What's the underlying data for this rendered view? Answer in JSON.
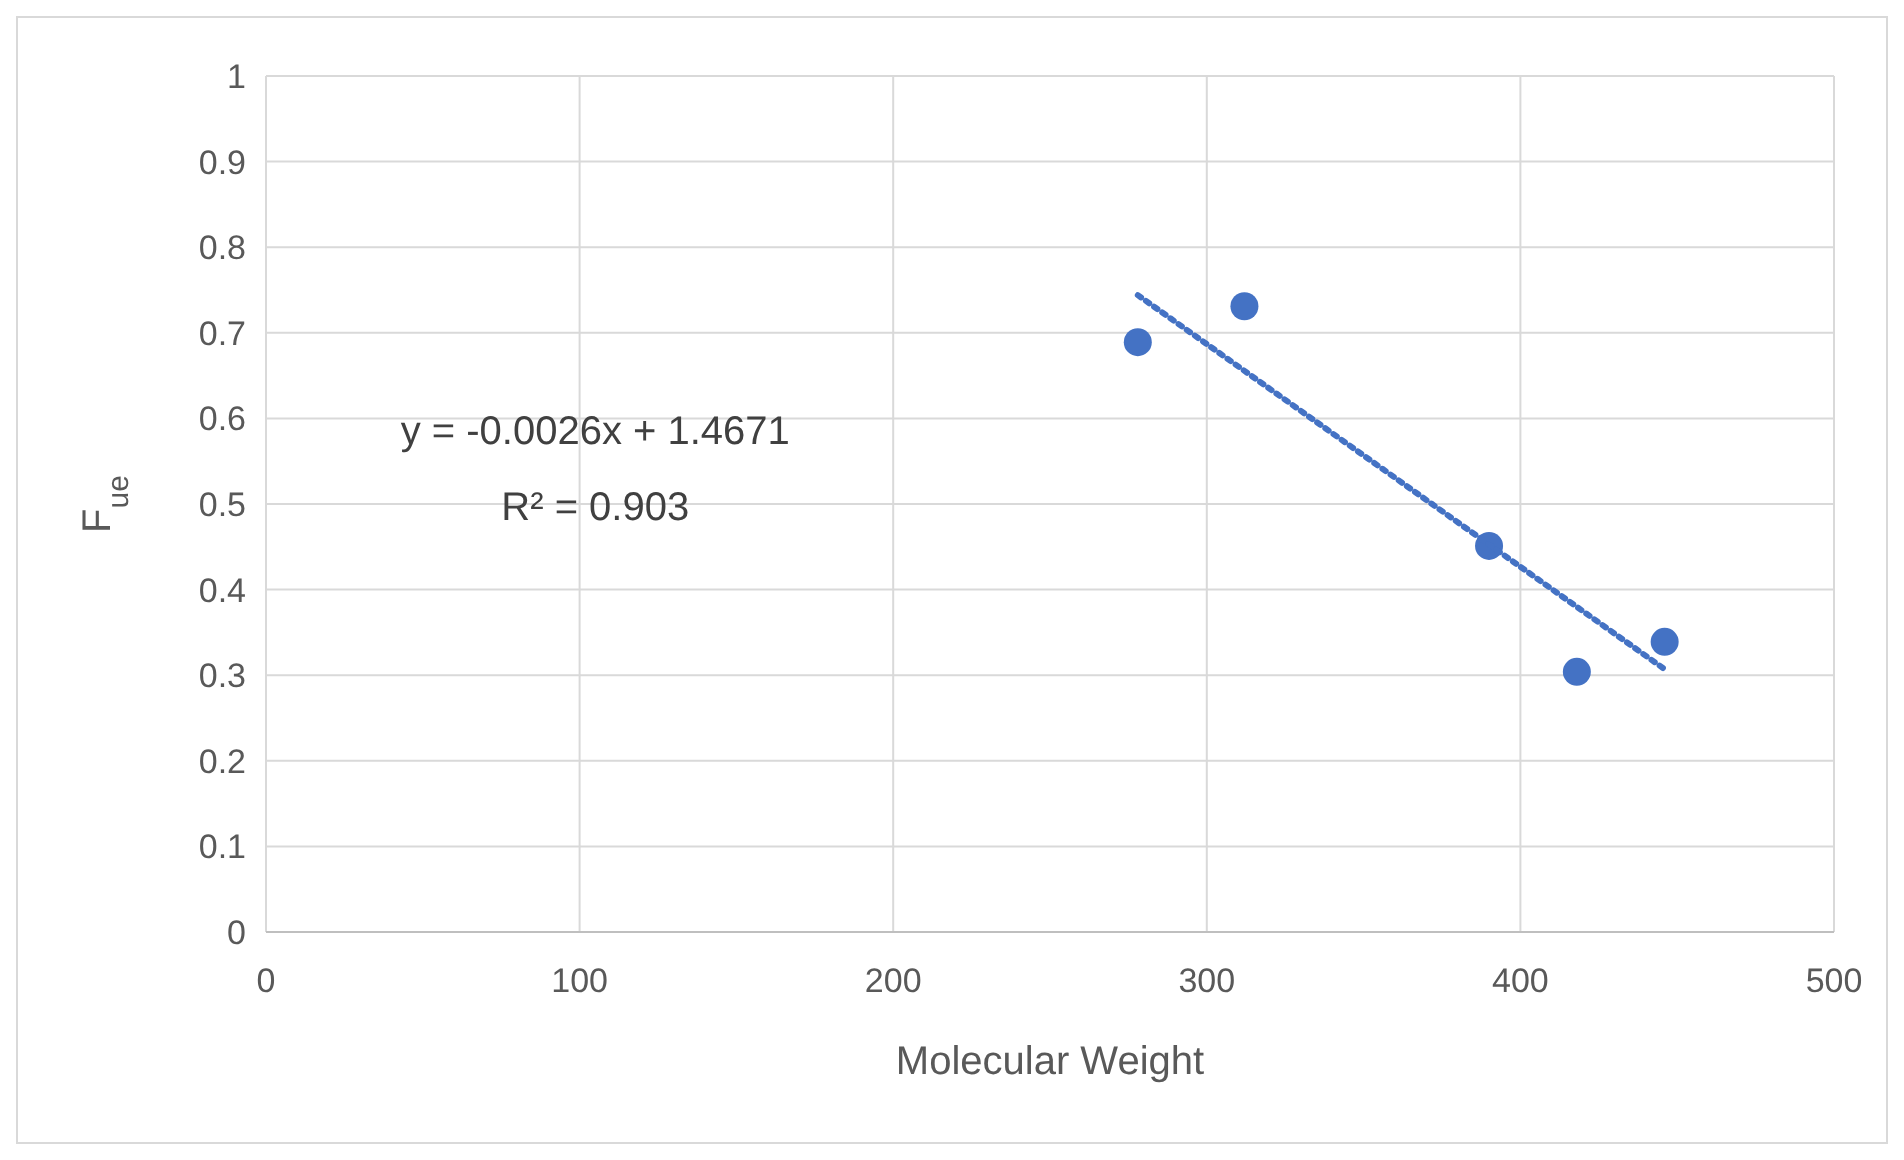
{
  "chart_data": {
    "type": "scatter",
    "xlabel": "Molecular Weight",
    "ylabel": "F$_{ue}$",
    "xlim": [
      0,
      500
    ],
    "xticks": [
      0,
      100,
      200,
      300,
      400,
      500
    ],
    "ylim": [
      0,
      1
    ],
    "yticks": [
      0,
      0.1,
      0.2,
      0.3,
      0.4,
      0.5,
      0.6,
      0.7,
      0.8,
      0.9,
      1
    ],
    "grid": true,
    "series": [
      {
        "color": "#4472c4",
        "marker": "circle",
        "x": [
          278,
          312,
          390,
          418,
          446
        ],
        "values": [
          0.689,
          0.731,
          0.451,
          0.304,
          0.339
        ]
      },
      {
        "type": "line",
        "color": "#4472c4",
        "line_style": "dotted",
        "marker": "none",
        "x": [
          278,
          446
        ],
        "values": [
          0.744,
          0.307
        ]
      }
    ],
    "annotations": [
      "y = -0.0026x + 1.4671",
      "R² = 0.903"
    ]
  }
}
